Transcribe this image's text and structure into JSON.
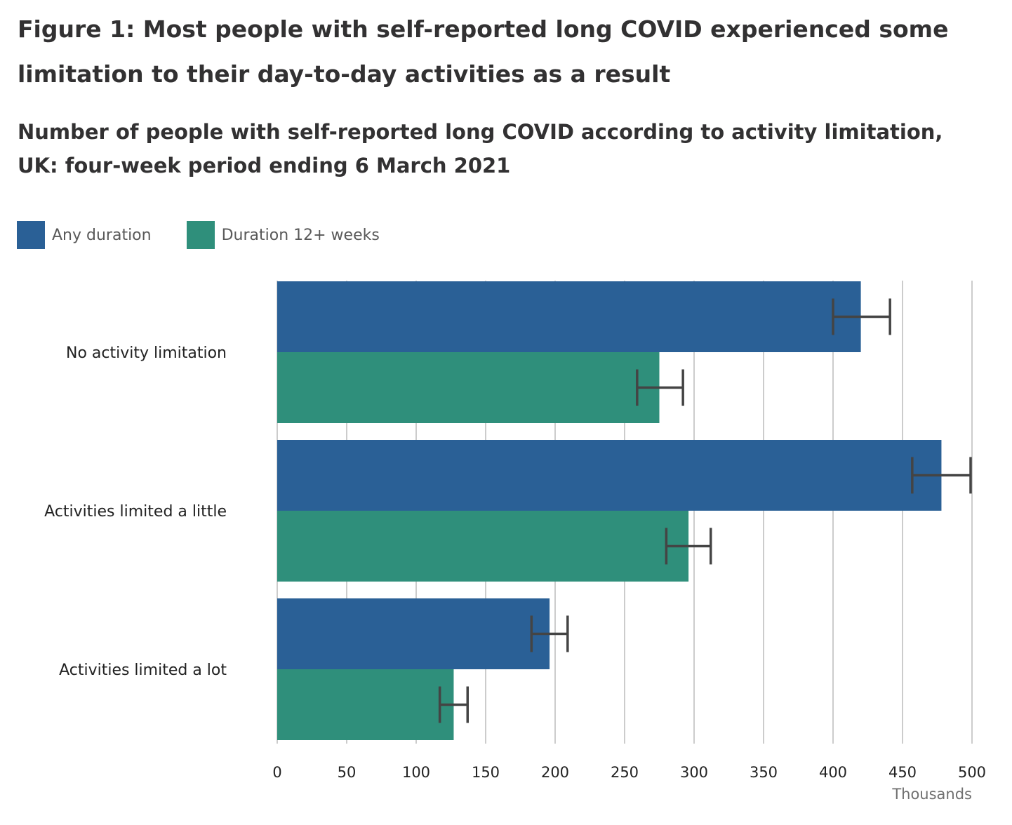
{
  "header": {
    "title": "Figure 1: Most people with self-reported long COVID experienced some limitation to their day-to-day activities as a result",
    "subtitle": "Number of people with self-reported long COVID according to activity limitation, UK: four-week period ending 6 March 2021"
  },
  "colors": {
    "any_duration": "#2a6096",
    "duration_12_weeks": "#2f8f7b",
    "error_bar": "#444444",
    "grid": "#cccccc"
  },
  "chart_data": {
    "type": "bar",
    "orientation": "horizontal",
    "title": "Number of people with self-reported long COVID according to activity limitation, UK: four-week period ending 6 March 2021",
    "xlabel": "Thousands",
    "ylabel": "",
    "xlim": [
      0,
      500
    ],
    "x_ticks": [
      0,
      50,
      100,
      150,
      200,
      250,
      300,
      350,
      400,
      450,
      500
    ],
    "grid": true,
    "legend_position": "top-left",
    "categories": [
      "No activity limitation",
      "Activities limited a little",
      "Activities limited a lot"
    ],
    "series": [
      {
        "name": "Any duration",
        "values": [
          420,
          478,
          196
        ],
        "ci_lower": [
          400,
          457,
          183
        ],
        "ci_upper": [
          441,
          499,
          209
        ]
      },
      {
        "name": "Duration 12+ weeks",
        "values": [
          275,
          296,
          127
        ],
        "ci_lower": [
          259,
          280,
          117
        ],
        "ci_upper": [
          292,
          312,
          137
        ]
      }
    ]
  }
}
